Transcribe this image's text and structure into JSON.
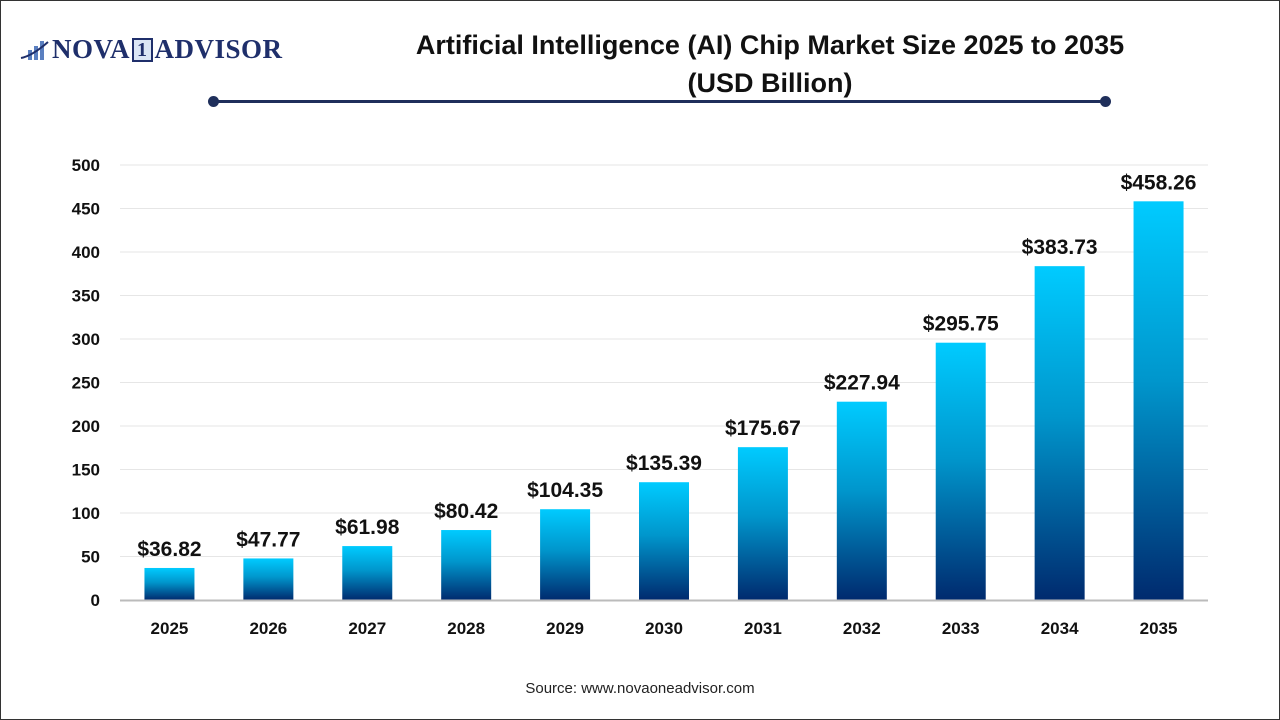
{
  "logo": {
    "text_left": "NOVA",
    "text_mid": "1",
    "text_right": "ADVISOR"
  },
  "title": "Artificial Intelligence (AI) Chip Market Size 2025 to 2035",
  "subtitle": "(USD Billion)",
  "source": "Source: www.novaoneadvisor.com",
  "colors": {
    "bar_top": "#00cbff",
    "bar_bottom": "#002a6e",
    "title_rule": "#1f2f5b"
  },
  "chart_data": {
    "type": "bar",
    "categories": [
      "2025",
      "2026",
      "2027",
      "2028",
      "2029",
      "2030",
      "2031",
      "2032",
      "2033",
      "2034",
      "2035"
    ],
    "values": [
      36.82,
      47.77,
      61.98,
      80.42,
      104.35,
      135.39,
      175.67,
      227.94,
      295.75,
      383.73,
      458.26
    ],
    "data_labels": [
      "$36.82",
      "$47.77",
      "$61.98",
      "$80.42",
      "$104.35",
      "$135.39",
      "$175.67",
      "$227.94",
      "$295.75",
      "$383.73",
      "$458.26"
    ],
    "yticks": [
      0,
      50,
      100,
      150,
      200,
      250,
      300,
      350,
      400,
      450,
      500
    ],
    "ylim": [
      0,
      500
    ],
    "grid": true,
    "xlabel": "",
    "ylabel": ""
  }
}
